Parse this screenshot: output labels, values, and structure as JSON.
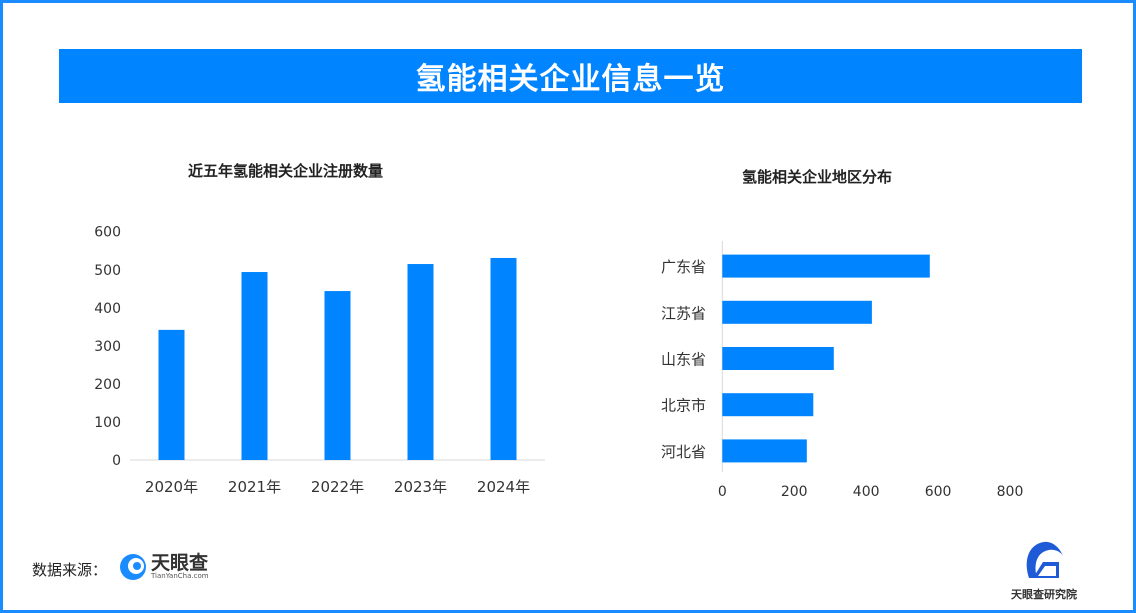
{
  "header": {
    "title": "氢能相关企业信息一览"
  },
  "colors": {
    "accent": "#0084ff",
    "frame": "#1a8cff"
  },
  "chart_data": [
    {
      "type": "bar",
      "title": "近五年氢能相关企业注册数量",
      "categories": [
        "2020年",
        "2021年",
        "2022年",
        "2023年",
        "2024年"
      ],
      "values": [
        342,
        494,
        444,
        515,
        531
      ],
      "ylim": [
        0,
        600
      ],
      "yticks": [
        0,
        100,
        200,
        300,
        400,
        500,
        600
      ],
      "grid": false
    },
    {
      "type": "bar",
      "orientation": "horizontal",
      "title": "氢能相关企业地区分布",
      "categories": [
        "广东省",
        "江苏省",
        "山东省",
        "北京市",
        "河北省"
      ],
      "values": [
        577,
        416,
        310,
        253,
        235
      ],
      "xlim": [
        0,
        800
      ],
      "xticks": [
        0,
        200,
        400,
        600,
        800
      ],
      "grid": false
    }
  ],
  "footer": {
    "source_label": "数据来源：",
    "source_logo": "天眼查",
    "source_logo_sub": "TianYanCha.com",
    "institute": "天眼查研究院"
  }
}
